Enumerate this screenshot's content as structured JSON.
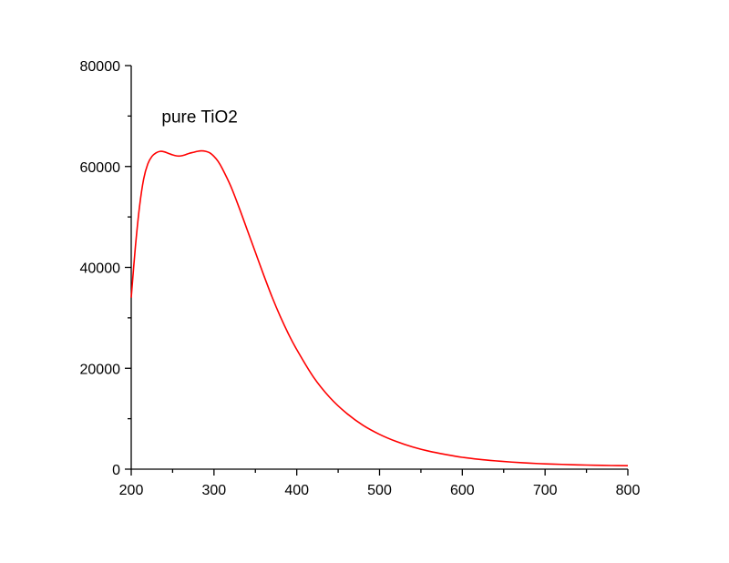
{
  "chart_data": {
    "type": "line",
    "title": "",
    "xlabel": "",
    "ylabel": "",
    "xlim": [
      200,
      800
    ],
    "ylim": [
      0,
      80000
    ],
    "x_ticks": [
      200,
      300,
      400,
      500,
      600,
      700,
      800
    ],
    "y_ticks": [
      0,
      20000,
      40000,
      60000,
      80000
    ],
    "grid": false,
    "annotations": [
      {
        "text": "pure TiO2",
        "x": 250,
        "y": 70000
      }
    ],
    "series": [
      {
        "color": "#ff0000",
        "x": [
          200,
          205,
          210,
          215,
          220,
          225,
          230,
          235,
          240,
          245,
          250,
          255,
          260,
          265,
          270,
          275,
          280,
          285,
          290,
          295,
          300,
          305,
          310,
          320,
          330,
          340,
          350,
          360,
          370,
          380,
          390,
          400,
          420,
          440,
          460,
          480,
          500,
          520,
          540,
          560,
          580,
          600,
          620,
          640,
          660,
          680,
          700,
          720,
          740,
          760,
          780,
          800
        ],
        "y": [
          34000,
          44000,
          52000,
          57500,
          60500,
          62000,
          62700,
          63000,
          62900,
          62600,
          62300,
          62100,
          62100,
          62300,
          62600,
          62800,
          63000,
          63100,
          63000,
          62700,
          62000,
          61000,
          59600,
          56200,
          52000,
          47500,
          43000,
          38500,
          34200,
          30300,
          26800,
          23700,
          18300,
          14200,
          11100,
          8700,
          6900,
          5500,
          4400,
          3550,
          2900,
          2350,
          1950,
          1650,
          1400,
          1200,
          1050,
          950,
          850,
          780,
          720,
          680
        ]
      }
    ]
  }
}
